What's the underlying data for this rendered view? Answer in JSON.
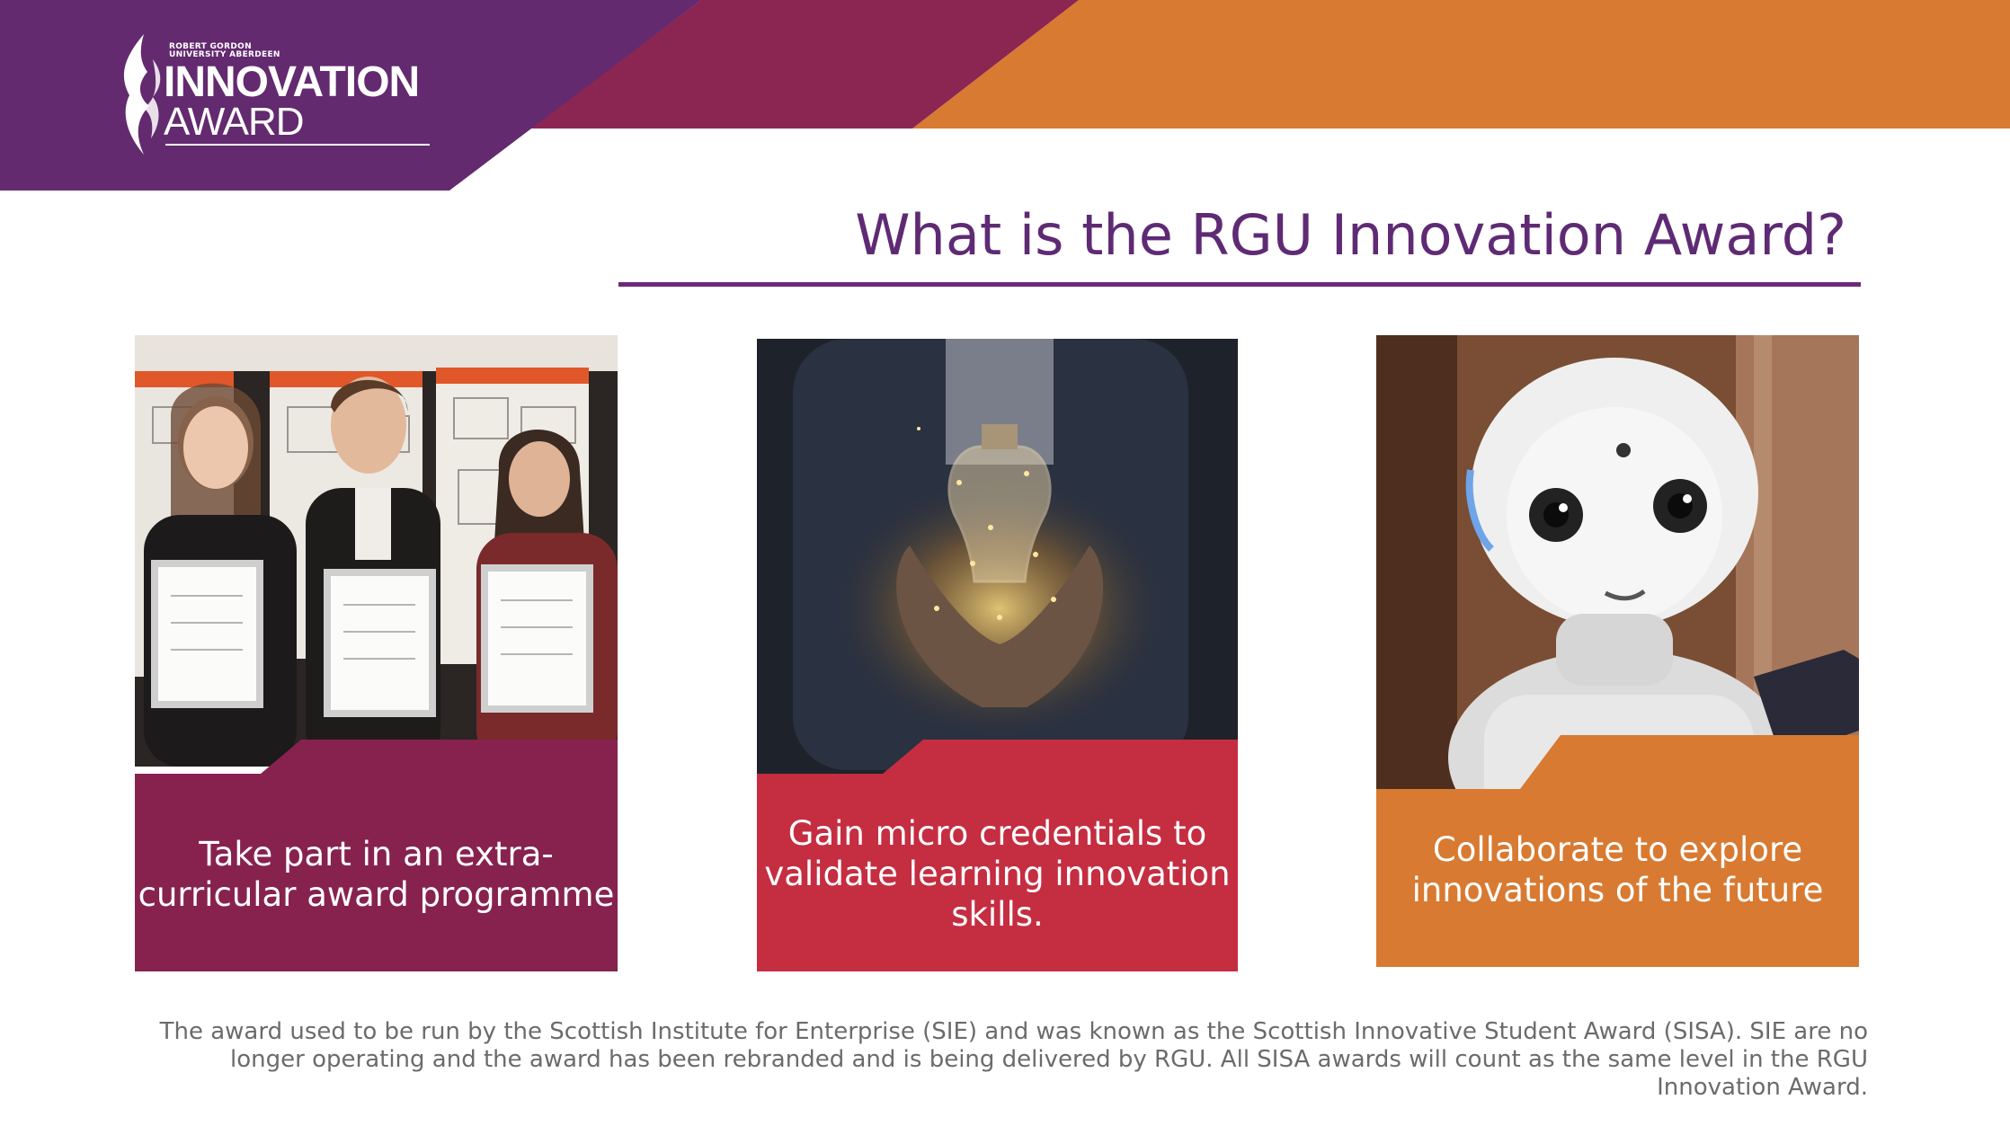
{
  "colors": {
    "purple": "#632a6f",
    "magenta": "#8b2552",
    "orange": "#d87a31",
    "title_purple": "#5f2a74",
    "card_purple": "#87224f",
    "card_red": "#c52d41",
    "card_orange": "#d87a31"
  },
  "logo": {
    "org_line1": "ROBERT GORDON",
    "org_line2": "UNIVERSITY ABERDEEN",
    "word1": "INNOVATION",
    "word2": "AWARD",
    "icon": "flame-icon"
  },
  "title": "What is the RGU Innovation Award?",
  "cards": [
    {
      "caption": "Take part in an extra-curricular award programme",
      "image": "students-with-certificates"
    },
    {
      "caption": "Gain micro credentials to validate learning innovation skills.",
      "image": "hands-holding-light-bulb"
    },
    {
      "caption": "Collaborate to explore innovations of the future",
      "image": "humanoid-robot"
    }
  ],
  "footnote": "The award used to be run by the Scottish Institute for Enterprise (SIE) and was known as the Scottish Innovative Student Award (SISA). SIE are no longer operating and the award has been rebranded and is being delivered by RGU. All SISA awards will count as the same level in the RGU Innovation Award."
}
